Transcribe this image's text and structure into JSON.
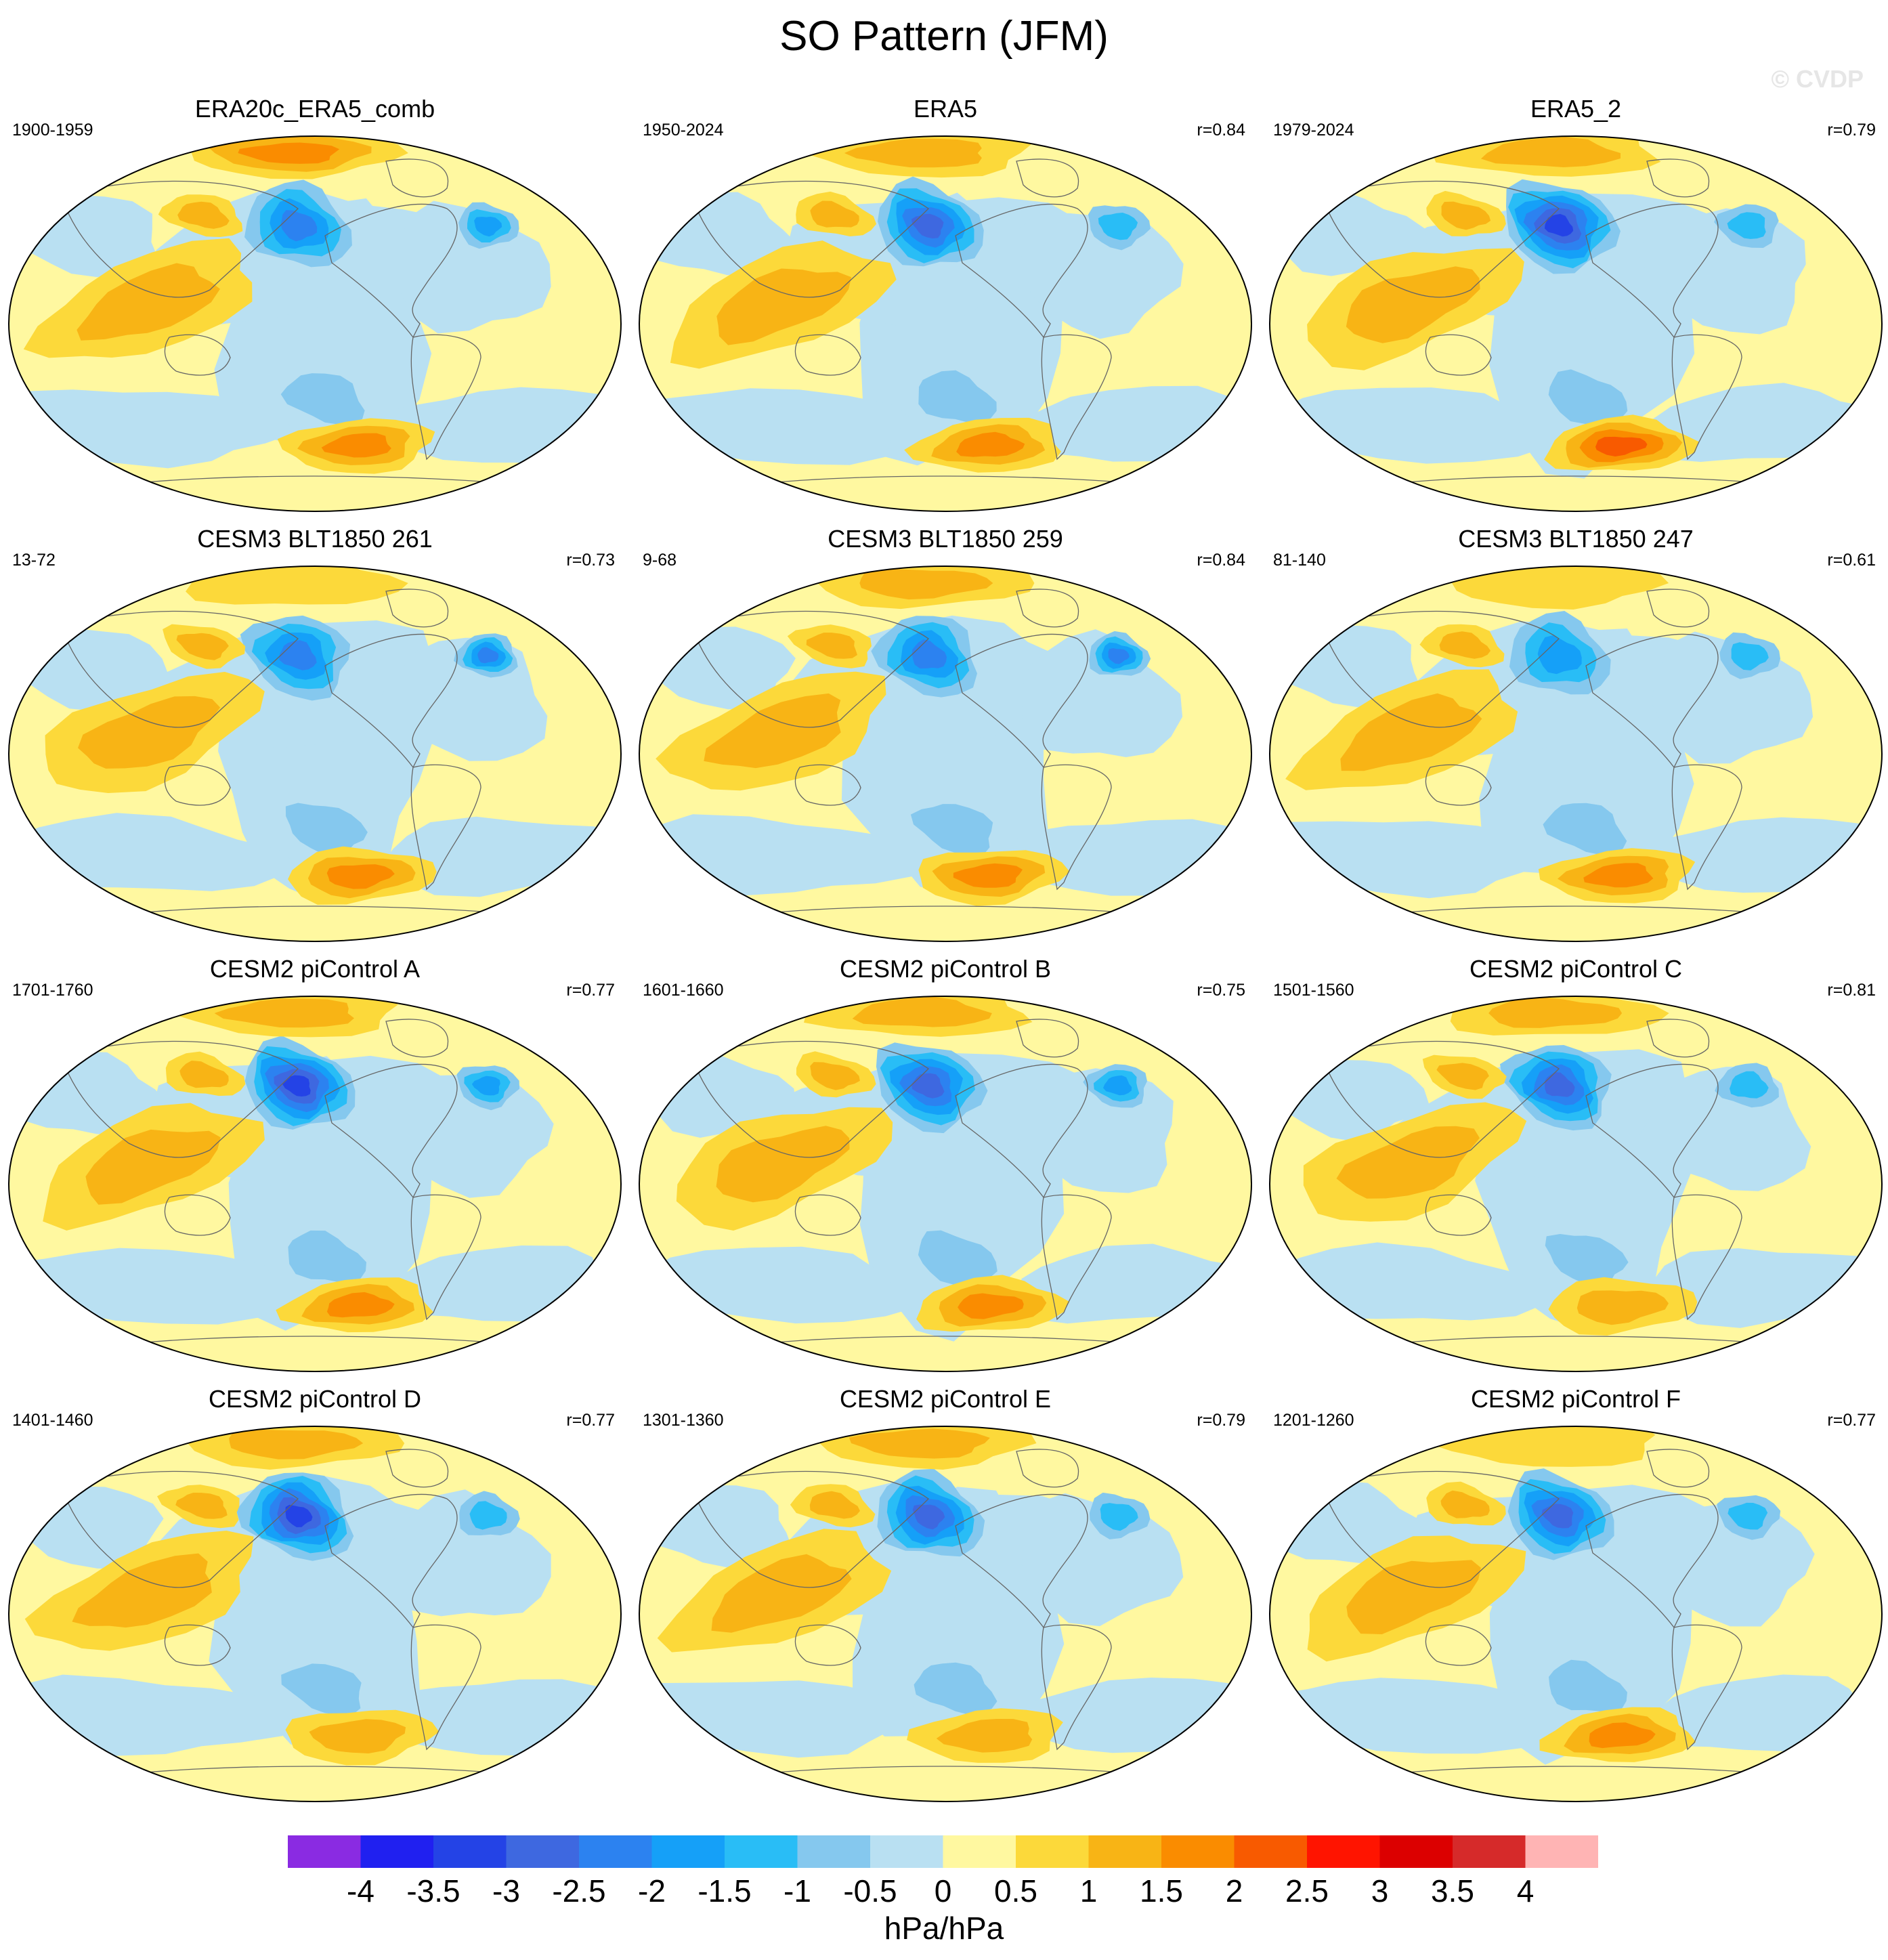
{
  "title": "SO Pattern (JFM)",
  "watermark": "© CVDP",
  "chart_data": {
    "type": "heatmap",
    "title": "SO Pattern (JFM)",
    "units": "hPa/hPa",
    "projection": "Robinson global map, Pacific-centered",
    "colorbar": {
      "levels": [
        -4,
        -3.5,
        -3,
        -2.5,
        -2,
        -1.5,
        -1,
        -0.5,
        0,
        0.5,
        1,
        1.5,
        2,
        2.5,
        3,
        3.5,
        4
      ],
      "tick_labels": [
        "-4",
        "-3.5",
        "-3",
        "-2.5",
        "-2",
        "-1.5",
        "-1",
        "-0.5",
        "0",
        "0.5",
        "1",
        "1.5",
        "2",
        "2.5",
        "3",
        "3.5",
        "4"
      ],
      "colors": [
        "#8A2BE2",
        "#2020F0",
        "#2443E6",
        "#3E68E0",
        "#2C82F0",
        "#15A0F8",
        "#29BDF6",
        "#85C8EE",
        "#B9E0F2",
        "#FFF8A0",
        "#FCD93A",
        "#F8B415",
        "#FA8C00",
        "#F85A00",
        "#FF1400",
        "#DC0000",
        "#D62A2A",
        "#FFB4B4"
      ]
    },
    "panels": [
      {
        "name": "ERA20c_ERA5_comb",
        "years": "1900-1959",
        "r": "",
        "aleutian_low": -2.4,
        "north_atlantic_low": -1.7,
        "arctic_high": 1.8,
        "south_pacific_high": 1.8,
        "indo_australian_high": 1.1
      },
      {
        "name": "ERA5",
        "years": "1950-2024",
        "r": "r=0.84",
        "aleutian_low": -2.6,
        "north_atlantic_low": -1.1,
        "arctic_high": 1.1,
        "south_pacific_high": 1.6,
        "indo_australian_high": 1.1
      },
      {
        "name": "ERA5_2",
        "years": "1979-2024",
        "r": "r=0.79",
        "aleutian_low": -3.3,
        "north_atlantic_low": -1.2,
        "arctic_high": 1.0,
        "south_pacific_high": 2.1,
        "indo_australian_high": 1.2
      },
      {
        "name": "CESM3 BLT1850 261",
        "years": "13-72",
        "r": "r=0.73",
        "aleutian_low": -2.3,
        "north_atlantic_low": -2.0,
        "arctic_high": 0.7,
        "south_pacific_high": 1.5,
        "indo_australian_high": 1.3
      },
      {
        "name": "CESM3 BLT1850 259",
        "years": "9-68",
        "r": "r=0.84",
        "aleutian_low": -2.0,
        "north_atlantic_low": -2.0,
        "arctic_high": 1.2,
        "south_pacific_high": 1.6,
        "indo_australian_high": 1.2
      },
      {
        "name": "CESM3 BLT1850 247",
        "years": "81-140",
        "r": "r=0.61",
        "aleutian_low": -1.9,
        "north_atlantic_low": -1.3,
        "arctic_high": 0.6,
        "south_pacific_high": 1.6,
        "indo_australian_high": 1.2
      },
      {
        "name": "CESM2 piControl A",
        "years": "1701-1760",
        "r": "r=0.77",
        "aleutian_low": -3.0,
        "north_atlantic_low": -1.7,
        "arctic_high": 1.4,
        "south_pacific_high": 1.7,
        "indo_australian_high": 1.2
      },
      {
        "name": "CESM2 piControl B",
        "years": "1601-1660",
        "r": "r=0.75",
        "aleutian_low": -2.8,
        "north_atlantic_low": -1.5,
        "arctic_high": 1.1,
        "south_pacific_high": 1.6,
        "indo_australian_high": 1.1
      },
      {
        "name": "CESM2 piControl C",
        "years": "1501-1560",
        "r": "r=0.81",
        "aleutian_low": -2.5,
        "north_atlantic_low": -1.2,
        "arctic_high": 1.2,
        "south_pacific_high": 1.2,
        "indo_australian_high": 1.2
      },
      {
        "name": "CESM2 piControl D",
        "years": "1401-1460",
        "r": "r=0.77",
        "aleutian_low": -3.0,
        "north_atlantic_low": -1.0,
        "arctic_high": 1.4,
        "south_pacific_high": 1.1,
        "indo_australian_high": 1.3
      },
      {
        "name": "CESM2 piControl E",
        "years": "1301-1360",
        "r": "r=0.79",
        "aleutian_low": -2.6,
        "north_atlantic_low": -1.1,
        "arctic_high": 1.0,
        "south_pacific_high": 1.2,
        "indo_australian_high": 1.2
      },
      {
        "name": "CESM2 piControl F",
        "years": "1201-1260",
        "r": "r=0.77",
        "aleutian_low": -2.6,
        "north_atlantic_low": -1.2,
        "arctic_high": 0.7,
        "south_pacific_high": 1.6,
        "indo_australian_high": 1.1
      }
    ]
  }
}
